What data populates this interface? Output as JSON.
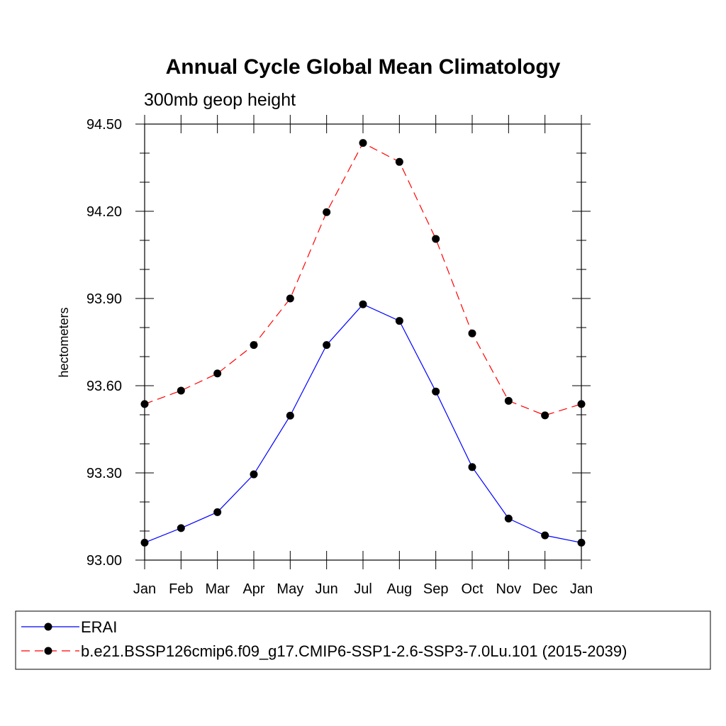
{
  "chart_data": {
    "type": "line",
    "title": "Annual Cycle Global Mean Climatology",
    "subtitle": "300mb geop height",
    "ylabel": "hectometers",
    "xlabel": "",
    "categories": [
      "Jan",
      "Feb",
      "Mar",
      "Apr",
      "May",
      "Jun",
      "Jul",
      "Aug",
      "Sep",
      "Oct",
      "Nov",
      "Dec",
      "Jan"
    ],
    "ylim": [
      93.0,
      94.5
    ],
    "yticks": [
      93.0,
      93.3,
      93.6,
      93.9,
      94.2,
      94.5
    ],
    "ytick_labels": [
      "93.00",
      "93.30",
      "93.60",
      "93.90",
      "94.20",
      "94.50"
    ],
    "y_minor_step": 0.1,
    "grid": false,
    "legend_position": "bottom",
    "series": [
      {
        "name": "ERAI",
        "color": "#0000ff",
        "dash": "solid",
        "marker": "filled-circle",
        "values": [
          93.06,
          93.11,
          93.165,
          93.295,
          93.497,
          93.74,
          93.88,
          93.823,
          93.58,
          93.32,
          93.143,
          93.085,
          93.06
        ]
      },
      {
        "name": "b.e21.BSSP126cmip6.f09_g17.CMIP6-SSP1-2.6-SSP3-7.0Lu.101 (2015-2039)",
        "color": "#ff0000",
        "dash": "dashed",
        "marker": "filled-circle",
        "values": [
          93.537,
          93.583,
          93.642,
          93.74,
          93.9,
          94.197,
          94.435,
          94.37,
          94.105,
          93.78,
          93.548,
          93.498,
          93.537
        ]
      }
    ]
  }
}
